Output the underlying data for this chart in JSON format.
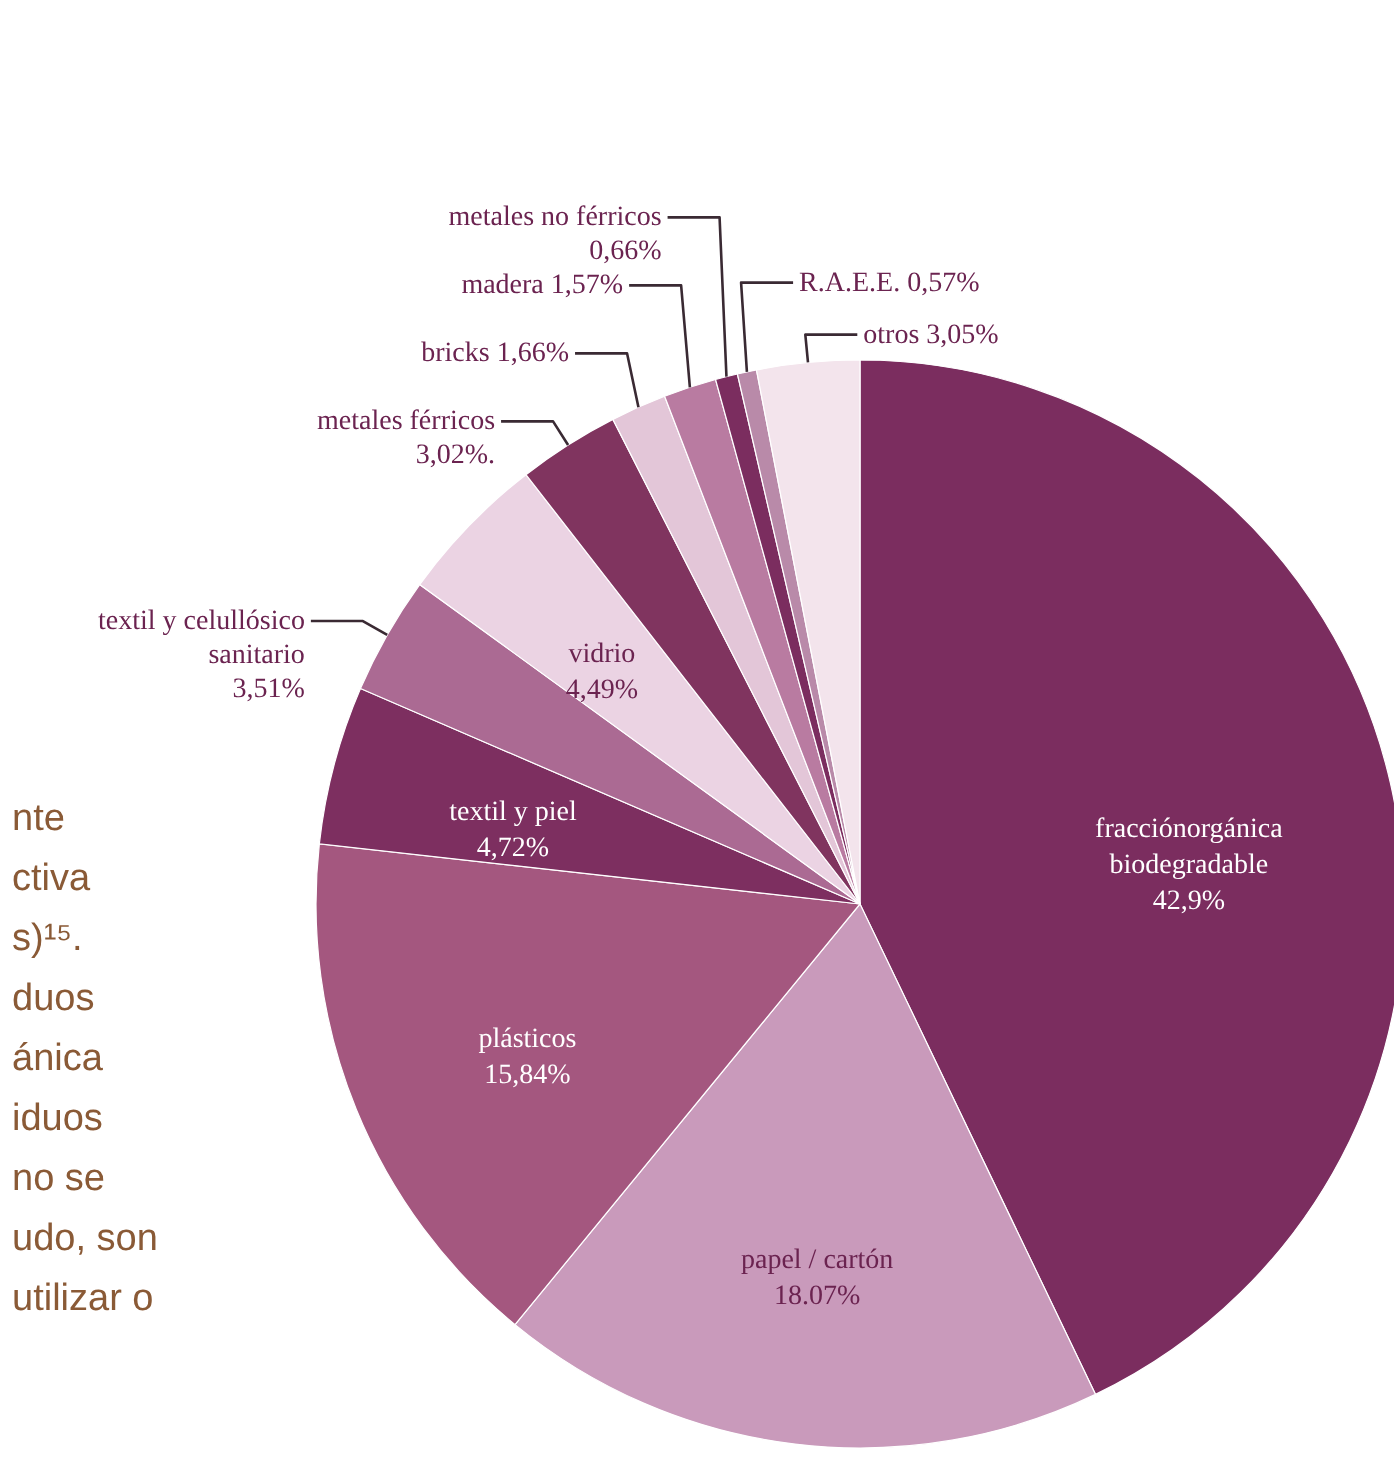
{
  "chart_data": {
    "type": "pie",
    "categories": [
      "fracciónorgánica biodegradable",
      "papel / cartón",
      "plásticos",
      "textil y piel",
      "textil y celullósico sanitario",
      "vidrio",
      "metales férricos",
      "bricks",
      "madera",
      "metales no férricos",
      "R.A.E.E.",
      "otros"
    ],
    "values": [
      42.9,
      18.07,
      15.84,
      4.72,
      3.51,
      4.49,
      3.02,
      1.66,
      1.57,
      0.66,
      0.57,
      3.05
    ],
    "value_labels": [
      "42,9%",
      "18.07%",
      "15,84%",
      "4,72%",
      "3,51%",
      "4,49%",
      "3,02%.",
      "1,66%",
      "1,57%",
      "0,66%",
      "0,57%",
      "3,05%"
    ],
    "colors": [
      "#7b2d5f",
      "#c99abb",
      "#a4577f",
      "#7d2f60",
      "#ab6a93",
      "#ebd3e3",
      "#80345f",
      "#e3c6d8",
      "#b97ba1",
      "#7b2d5f",
      "#b98aa9",
      "#f3e4ec"
    ],
    "annotations": [
      "nte\nctiva\ns)¹⁵.\nduos\nánica\niduos\nno se\nudo, son\nutilizar o"
    ]
  }
}
